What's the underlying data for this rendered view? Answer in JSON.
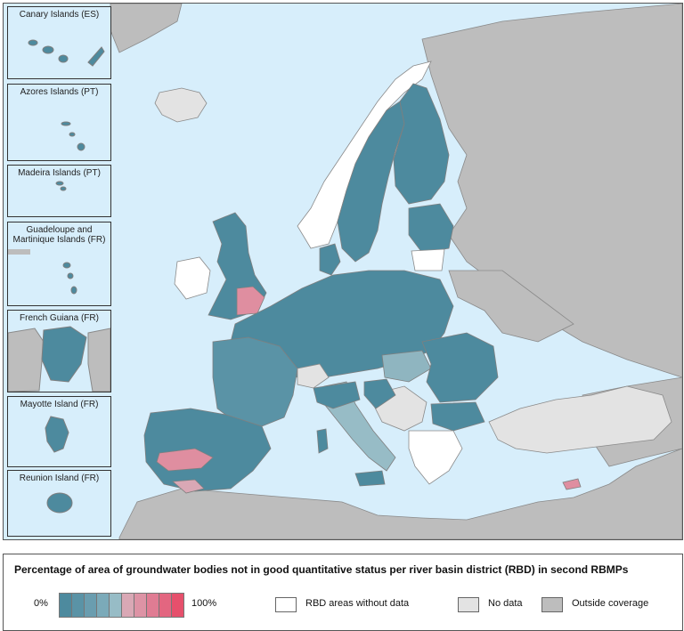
{
  "legend": {
    "title": "Percentage of area of groundwater bodies not in good quantitative status per river basin district (RBD) in second RBMPs",
    "min_label": "0%",
    "max_label": "100%",
    "scale_colors": [
      "#4d8a9e",
      "#5a93a6",
      "#6a9daf",
      "#7baab9",
      "#97bcc6",
      "#d9a8b5",
      "#dd93a5",
      "#e07c93",
      "#e36680",
      "#e6506c"
    ],
    "no_data_areas": "RBD areas without data",
    "no_data": "No data",
    "outside": "Outside coverage"
  },
  "insets": [
    {
      "title": "Canary Islands (ES)"
    },
    {
      "title": "Azores Islands (PT)"
    },
    {
      "title": "Madeira Islands (PT)"
    },
    {
      "title": "Guadeloupe and Martinique Islands (FR)"
    },
    {
      "title": "French Guiana (FR)"
    },
    {
      "title": "Mayotte Island (FR)"
    },
    {
      "title": "Reunion Island (FR)"
    }
  ],
  "colors": {
    "sea": "#d7eefb",
    "outside": "#bdbdbd",
    "no_data": "#e3e3e3",
    "rbd_without_data": "#ffffff",
    "low": "#4d8a9e",
    "mid": "#8fb5c0",
    "high": "#df8ea0",
    "border": "#7f7f7f"
  }
}
